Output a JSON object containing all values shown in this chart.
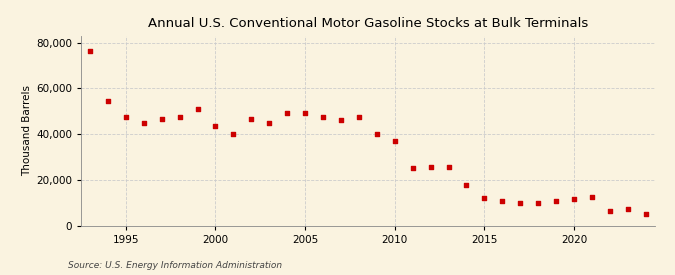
{
  "title": "Annual U.S. Conventional Motor Gasoline Stocks at Bulk Terminals",
  "ylabel": "Thousand Barrels",
  "source": "Source: U.S. Energy Information Administration",
  "background_color": "#faf3e0",
  "plot_background_color": "#faf3e0",
  "marker_color": "#cc0000",
  "marker": "s",
  "marker_size": 3.5,
  "xlim": [
    1992.5,
    2024.5
  ],
  "ylim": [
    0,
    83000
  ],
  "yticks": [
    0,
    20000,
    40000,
    60000,
    80000
  ],
  "xticks": [
    1995,
    2000,
    2005,
    2010,
    2015,
    2020
  ],
  "grid_color": "#cccccc",
  "years": [
    1993,
    1994,
    1995,
    1996,
    1997,
    1998,
    1999,
    2000,
    2001,
    2002,
    2003,
    2004,
    2005,
    2006,
    2007,
    2008,
    2009,
    2010,
    2011,
    2012,
    2013,
    2014,
    2015,
    2016,
    2017,
    2018,
    2019,
    2020,
    2021,
    2022,
    2023,
    2024
  ],
  "values": [
    76500,
    54500,
    47500,
    45000,
    46500,
    47500,
    51000,
    43500,
    40000,
    46500,
    45000,
    49000,
    49000,
    47500,
    46000,
    47500,
    40000,
    37000,
    25000,
    25500,
    25500,
    17500,
    12000,
    10500,
    10000,
    10000,
    10500,
    11500,
    12500,
    6500,
    7000,
    5000
  ]
}
